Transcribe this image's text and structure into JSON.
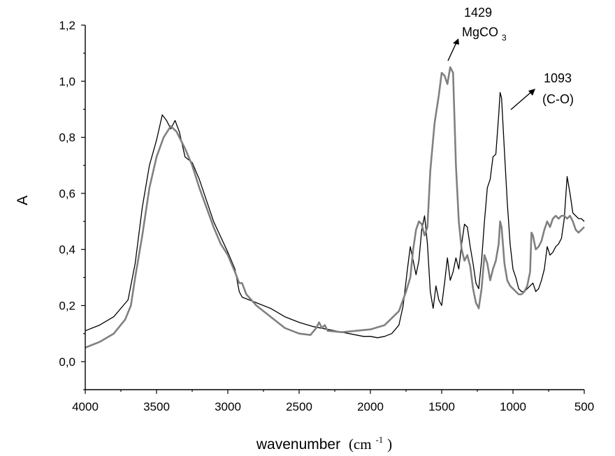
{
  "chart_data": {
    "type": "line",
    "xlabel": "wavenumber",
    "xlabel_unit": "(cm",
    "xlabel_unit_exp": "-1",
    "xlabel_unit_close": ")",
    "ylabel": "A",
    "xlim": [
      4000,
      500
    ],
    "ylim": [
      -0.1,
      1.2
    ],
    "x_ticks": [
      4000,
      3500,
      3000,
      2500,
      2000,
      1500,
      1000,
      500
    ],
    "x_tick_labels": [
      "4000",
      "3500",
      "3000",
      "2500",
      "2000",
      "1500",
      "1000",
      "500"
    ],
    "y_ticks": [
      0.0,
      0.2,
      0.4,
      0.6,
      0.8,
      1.0,
      1.2
    ],
    "y_tick_labels": [
      "0,0",
      "0,2",
      "0,4",
      "0,6",
      "0,8",
      "1,0",
      "1,2"
    ],
    "grid": false,
    "series": [
      {
        "color": "#000000",
        "points": [
          [
            4000,
            0.11
          ],
          [
            3900,
            0.13
          ],
          [
            3800,
            0.16
          ],
          [
            3700,
            0.22
          ],
          [
            3650,
            0.35
          ],
          [
            3600,
            0.55
          ],
          [
            3550,
            0.7
          ],
          [
            3500,
            0.79
          ],
          [
            3460,
            0.88
          ],
          [
            3430,
            0.86
          ],
          [
            3400,
            0.83
          ],
          [
            3370,
            0.86
          ],
          [
            3340,
            0.82
          ],
          [
            3300,
            0.73
          ],
          [
            3250,
            0.71
          ],
          [
            3200,
            0.65
          ],
          [
            3100,
            0.5
          ],
          [
            3000,
            0.39
          ],
          [
            2950,
            0.33
          ],
          [
            2920,
            0.25
          ],
          [
            2900,
            0.23
          ],
          [
            2850,
            0.22
          ],
          [
            2800,
            0.21
          ],
          [
            2700,
            0.19
          ],
          [
            2600,
            0.16
          ],
          [
            2500,
            0.14
          ],
          [
            2400,
            0.125
          ],
          [
            2300,
            0.115
          ],
          [
            2200,
            0.105
          ],
          [
            2100,
            0.095
          ],
          [
            2050,
            0.09
          ],
          [
            2000,
            0.09
          ],
          [
            1950,
            0.085
          ],
          [
            1900,
            0.09
          ],
          [
            1850,
            0.1
          ],
          [
            1800,
            0.13
          ],
          [
            1770,
            0.2
          ],
          [
            1740,
            0.33
          ],
          [
            1720,
            0.41
          ],
          [
            1700,
            0.36
          ],
          [
            1680,
            0.31
          ],
          [
            1660,
            0.36
          ],
          [
            1640,
            0.47
          ],
          [
            1620,
            0.52
          ],
          [
            1600,
            0.42
          ],
          [
            1580,
            0.25
          ],
          [
            1560,
            0.19
          ],
          [
            1540,
            0.27
          ],
          [
            1520,
            0.22
          ],
          [
            1500,
            0.2
          ],
          [
            1480,
            0.28
          ],
          [
            1460,
            0.37
          ],
          [
            1440,
            0.29
          ],
          [
            1420,
            0.32
          ],
          [
            1400,
            0.37
          ],
          [
            1380,
            0.33
          ],
          [
            1360,
            0.42
          ],
          [
            1340,
            0.49
          ],
          [
            1320,
            0.48
          ],
          [
            1300,
            0.41
          ],
          [
            1280,
            0.35
          ],
          [
            1260,
            0.28
          ],
          [
            1240,
            0.26
          ],
          [
            1220,
            0.36
          ],
          [
            1200,
            0.5
          ],
          [
            1180,
            0.62
          ],
          [
            1160,
            0.65
          ],
          [
            1140,
            0.73
          ],
          [
            1120,
            0.74
          ],
          [
            1100,
            0.88
          ],
          [
            1090,
            0.96
          ],
          [
            1080,
            0.94
          ],
          [
            1060,
            0.75
          ],
          [
            1040,
            0.57
          ],
          [
            1020,
            0.42
          ],
          [
            1000,
            0.33
          ],
          [
            980,
            0.3
          ],
          [
            960,
            0.26
          ],
          [
            940,
            0.25
          ],
          [
            920,
            0.25
          ],
          [
            880,
            0.27
          ],
          [
            860,
            0.28
          ],
          [
            840,
            0.25
          ],
          [
            820,
            0.26
          ],
          [
            800,
            0.29
          ],
          [
            780,
            0.33
          ],
          [
            760,
            0.41
          ],
          [
            740,
            0.38
          ],
          [
            720,
            0.39
          ],
          [
            700,
            0.41
          ],
          [
            680,
            0.42
          ],
          [
            660,
            0.44
          ],
          [
            640,
            0.51
          ],
          [
            620,
            0.66
          ],
          [
            600,
            0.6
          ],
          [
            580,
            0.53
          ],
          [
            560,
            0.52
          ],
          [
            540,
            0.51
          ],
          [
            520,
            0.51
          ],
          [
            500,
            0.5
          ]
        ]
      },
      {
        "color": "#808080",
        "points": [
          [
            4000,
            0.05
          ],
          [
            3900,
            0.07
          ],
          [
            3800,
            0.1
          ],
          [
            3720,
            0.15
          ],
          [
            3680,
            0.2
          ],
          [
            3650,
            0.3
          ],
          [
            3600,
            0.45
          ],
          [
            3550,
            0.62
          ],
          [
            3500,
            0.73
          ],
          [
            3450,
            0.8
          ],
          [
            3400,
            0.84
          ],
          [
            3360,
            0.82
          ],
          [
            3300,
            0.76
          ],
          [
            3250,
            0.7
          ],
          [
            3200,
            0.62
          ],
          [
            3150,
            0.55
          ],
          [
            3100,
            0.48
          ],
          [
            3050,
            0.42
          ],
          [
            3000,
            0.38
          ],
          [
            2950,
            0.32
          ],
          [
            2920,
            0.28
          ],
          [
            2900,
            0.28
          ],
          [
            2870,
            0.24
          ],
          [
            2800,
            0.2
          ],
          [
            2700,
            0.16
          ],
          [
            2600,
            0.12
          ],
          [
            2500,
            0.1
          ],
          [
            2420,
            0.095
          ],
          [
            2380,
            0.12
          ],
          [
            2360,
            0.14
          ],
          [
            2340,
            0.12
          ],
          [
            2320,
            0.13
          ],
          [
            2300,
            0.11
          ],
          [
            2200,
            0.105
          ],
          [
            2100,
            0.11
          ],
          [
            2000,
            0.115
          ],
          [
            1900,
            0.13
          ],
          [
            1800,
            0.18
          ],
          [
            1750,
            0.25
          ],
          [
            1720,
            0.3
          ],
          [
            1700,
            0.4
          ],
          [
            1680,
            0.47
          ],
          [
            1660,
            0.5
          ],
          [
            1640,
            0.49
          ],
          [
            1620,
            0.45
          ],
          [
            1600,
            0.48
          ],
          [
            1580,
            0.68
          ],
          [
            1550,
            0.85
          ],
          [
            1520,
            0.95
          ],
          [
            1500,
            1.03
          ],
          [
            1480,
            1.02
          ],
          [
            1460,
            0.99
          ],
          [
            1440,
            1.05
          ],
          [
            1420,
            1.03
          ],
          [
            1400,
            0.7
          ],
          [
            1380,
            0.5
          ],
          [
            1360,
            0.4
          ],
          [
            1340,
            0.36
          ],
          [
            1320,
            0.38
          ],
          [
            1300,
            0.34
          ],
          [
            1280,
            0.26
          ],
          [
            1260,
            0.21
          ],
          [
            1240,
            0.19
          ],
          [
            1220,
            0.26
          ],
          [
            1200,
            0.38
          ],
          [
            1180,
            0.35
          ],
          [
            1160,
            0.29
          ],
          [
            1140,
            0.33
          ],
          [
            1120,
            0.36
          ],
          [
            1100,
            0.42
          ],
          [
            1090,
            0.5
          ],
          [
            1080,
            0.48
          ],
          [
            1060,
            0.35
          ],
          [
            1040,
            0.29
          ],
          [
            1020,
            0.27
          ],
          [
            1000,
            0.26
          ],
          [
            980,
            0.25
          ],
          [
            960,
            0.24
          ],
          [
            940,
            0.24
          ],
          [
            920,
            0.25
          ],
          [
            900,
            0.27
          ],
          [
            880,
            0.32
          ],
          [
            870,
            0.46
          ],
          [
            860,
            0.45
          ],
          [
            840,
            0.4
          ],
          [
            820,
            0.41
          ],
          [
            800,
            0.43
          ],
          [
            780,
            0.47
          ],
          [
            760,
            0.5
          ],
          [
            740,
            0.48
          ],
          [
            720,
            0.51
          ],
          [
            700,
            0.52
          ],
          [
            680,
            0.51
          ],
          [
            660,
            0.52
          ],
          [
            640,
            0.52
          ],
          [
            620,
            0.51
          ],
          [
            600,
            0.52
          ],
          [
            580,
            0.5
          ],
          [
            560,
            0.47
          ],
          [
            540,
            0.46
          ],
          [
            520,
            0.47
          ],
          [
            500,
            0.48
          ]
        ]
      }
    ],
    "annotations": [
      {
        "id": "mgco3",
        "label": "1429",
        "sublabel": "MgCO",
        "sublabel_sub": "3"
      },
      {
        "id": "co",
        "label": "1093",
        "sublabel": "(C-O)"
      }
    ]
  }
}
